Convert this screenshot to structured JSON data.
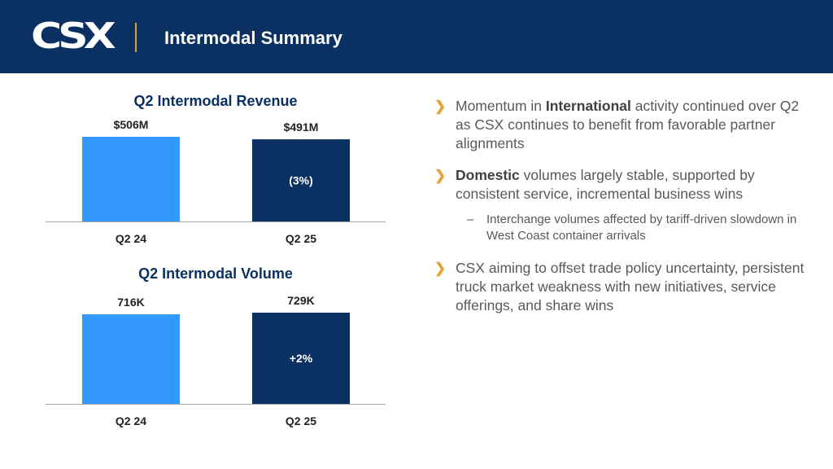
{
  "header": {
    "logo_text": "CSX",
    "title": "Intermodal Summary"
  },
  "colors": {
    "header_bg": "#0a3161",
    "bar_prior": "#3399ff",
    "bar_current": "#0a3161",
    "accent": "#e8a23a",
    "divider": "#d8a23a"
  },
  "chart_data": [
    {
      "type": "bar",
      "title": "Q2 Intermodal Revenue",
      "categories": [
        "Q2 24",
        "Q2 25"
      ],
      "values": [
        506,
        491
      ],
      "data_labels": [
        "$506M",
        "$491M"
      ],
      "change_label": "(3%)",
      "ylim": [
        0,
        560
      ]
    },
    {
      "type": "bar",
      "title": "Q2 Intermodal Volume",
      "categories": [
        "Q2 24",
        "Q2 25"
      ],
      "values": [
        716,
        729
      ],
      "data_labels": [
        "716K",
        "729K"
      ],
      "change_label": "+2%",
      "ylim": [
        0,
        800
      ]
    }
  ],
  "bullets": [
    {
      "pre": "Momentum in ",
      "bold": "International",
      "post": " activity continued over Q2 as CSX continues to benefit from favorable partner alignments"
    },
    {
      "pre": "",
      "bold": "Domestic",
      "post": " volumes largely stable, supported by consistent service, incremental business wins",
      "sub": "Interchange volumes affected by tariff-driven slowdown in West Coast container arrivals"
    },
    {
      "pre": "CSX aiming to offset trade policy uncertainty, persistent truck market weakness with new initiatives, service offerings, and share wins",
      "bold": "",
      "post": ""
    }
  ]
}
